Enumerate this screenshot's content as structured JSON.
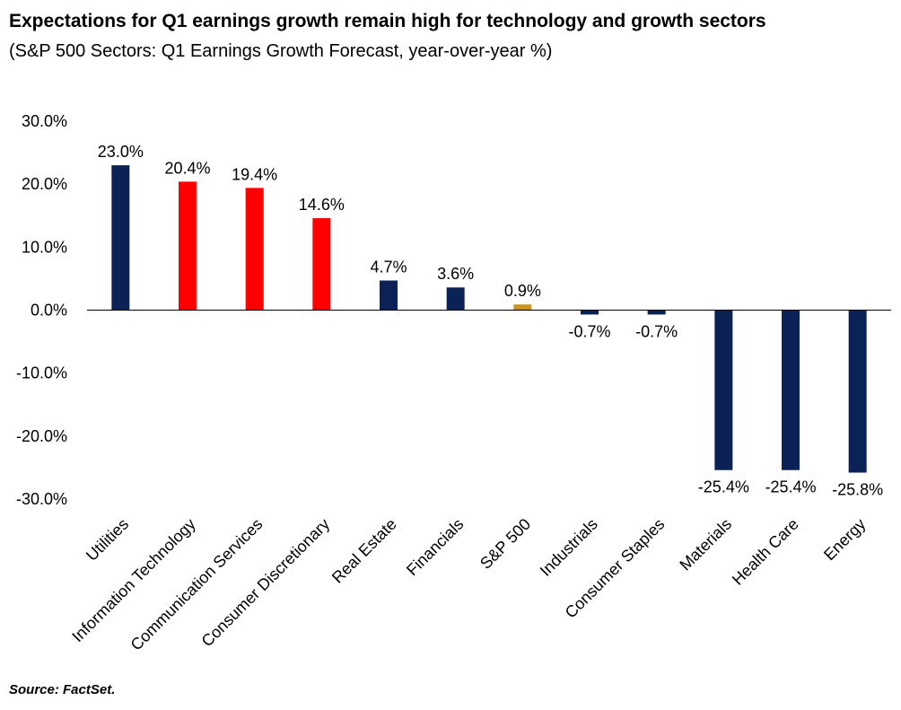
{
  "title": "Expectations for Q1 earnings growth remain high for technology and growth sectors",
  "subtitle": "(S&P 500 Sectors: Q1 Earnings Growth Forecast, year-over-year %)",
  "source": "Source: FactSet.",
  "colors": {
    "sector": "#0b2257",
    "highlight": "#ff0000",
    "index": "#c9951e",
    "axis": "#000000"
  },
  "chart_data": {
    "type": "bar",
    "categories": [
      "Utilities",
      "Information Technology",
      "Communication Services",
      "Consumer Discretionary",
      "Real Estate",
      "Financials",
      "S&P 500",
      "Industrials",
      "Consumer Staples",
      "Materials",
      "Health Care",
      "Energy"
    ],
    "values": [
      23.0,
      20.4,
      19.4,
      14.6,
      4.7,
      3.6,
      0.9,
      -0.7,
      -0.7,
      -25.4,
      -25.4,
      -25.8
    ],
    "value_labels": [
      "23.0%",
      "20.4%",
      "19.4%",
      "14.6%",
      "4.7%",
      "3.6%",
      "0.9%",
      "-0.7%",
      "-0.7%",
      "-25.4%",
      "-25.4%",
      "-25.8%"
    ],
    "bar_color_keys": [
      "sector",
      "highlight",
      "highlight",
      "highlight",
      "sector",
      "sector",
      "index",
      "sector",
      "sector",
      "sector",
      "sector",
      "sector"
    ],
    "ylim": [
      -30,
      30
    ],
    "yticks": [
      30,
      20,
      10,
      0,
      -10,
      -20,
      -30
    ],
    "ytick_labels": [
      "30.0%",
      "20.0%",
      "10.0%",
      "0.0%",
      "-10.0%",
      "-20.0%",
      "-30.0%"
    ],
    "xlabel": "",
    "ylabel": "",
    "grid": false,
    "legend": false
  }
}
